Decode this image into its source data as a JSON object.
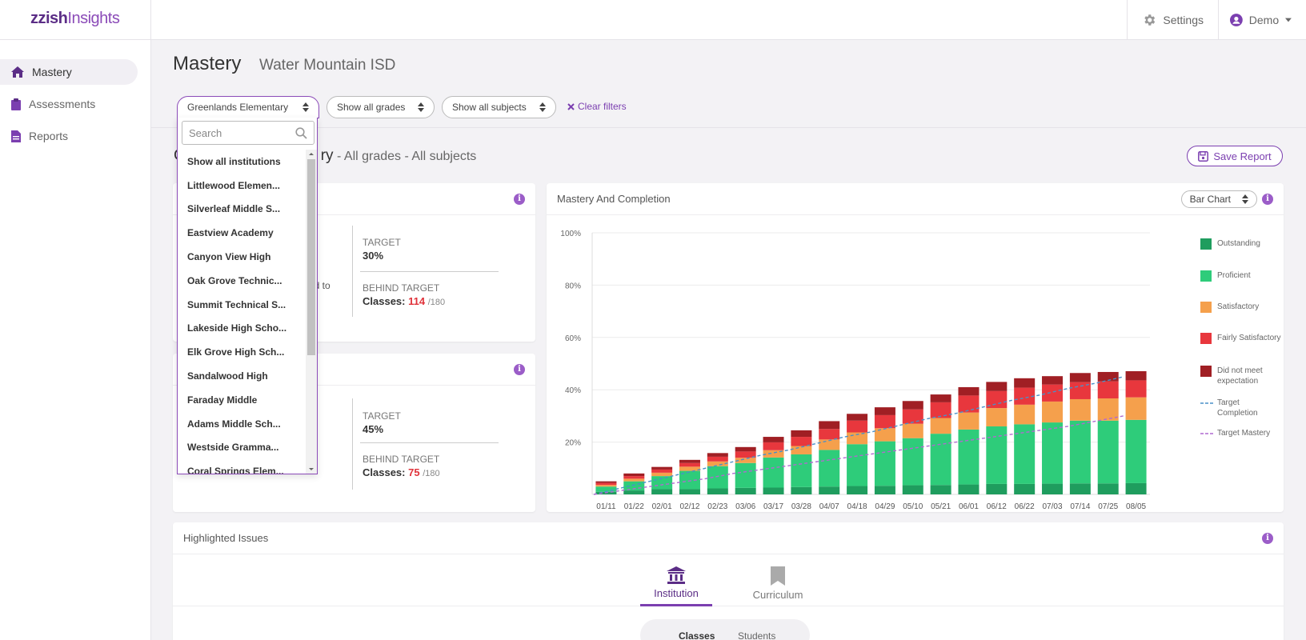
{
  "app": {
    "logo_part1": "zzish",
    "logo_part2": "Insights"
  },
  "topbar": {
    "settings_label": "Settings",
    "user_label": "Demo"
  },
  "sidebar": {
    "items": [
      {
        "label": "Mastery"
      },
      {
        "label": "Assessments"
      },
      {
        "label": "Reports"
      }
    ]
  },
  "header": {
    "title": "Mastery",
    "subtitle": "Water Mountain ISD"
  },
  "filters": {
    "institution": "Greenlands Elementary",
    "grades": "Show all grades",
    "subjects": "Show all subjects",
    "clear": "Clear filters"
  },
  "report": {
    "title_visible": "C",
    "title_partial": "ry",
    "sub": " - All grades - All subjects",
    "save_label": "Save Report"
  },
  "card1": {
    "partial_text": "ed to",
    "target_label": "TARGET",
    "target_value": "30%",
    "behind_label": "BEHIND TARGET",
    "classes_label": "Classes:",
    "behind_count": "114",
    "behind_total": "/180"
  },
  "card2": {
    "target_label": "TARGET",
    "target_value": "45%",
    "behind_label": "BEHIND TARGET",
    "classes_label": "Classes:",
    "behind_count": "75",
    "behind_total": "/180"
  },
  "chart_card": {
    "title": "Mastery And Completion",
    "chart_type_label": "Bar Chart"
  },
  "dropdown": {
    "search_placeholder": "Search",
    "items": [
      "Show all institutions",
      "Littlewood Elemen...",
      "Silverleaf Middle S...",
      "Eastview Academy",
      "Canyon View High",
      "Oak Grove Technic...",
      "Summit Technical S...",
      "Lakeside High Scho...",
      "Elk Grove High Sch...",
      "Sandalwood High",
      "Faraday Middle",
      "Adams Middle Sch...",
      "Westside Gramma...",
      "Coral Springs Elem..."
    ]
  },
  "issues": {
    "title": "Highlighted Issues",
    "tab_institution": "Institution",
    "tab_curriculum": "Curriculum",
    "seg_classes": "Classes",
    "seg_students": "Students"
  },
  "colors": {
    "accent": "#7b3fb0",
    "outstanding": "#1f9d5e",
    "proficient": "#2ecc7a",
    "satisfactory": "#f5a04c",
    "fairly": "#e8373d",
    "notmeet": "#a01f24",
    "target_completion": "#4a90c8",
    "target_mastery": "#b06ad0"
  },
  "chart_data": {
    "type": "bar",
    "stacked": true,
    "categories": [
      "01/11",
      "01/22",
      "02/01",
      "02/12",
      "02/23",
      "03/06",
      "03/17",
      "03/28",
      "04/07",
      "04/18",
      "04/29",
      "05/10",
      "05/21",
      "06/01",
      "06/12",
      "06/22",
      "07/03",
      "07/14",
      "07/25",
      "08/05"
    ],
    "y_ticks": [
      "20%",
      "40%",
      "60%",
      "80%",
      "100%"
    ],
    "ylim": [
      0,
      100
    ],
    "legend_position": "right",
    "series": [
      {
        "name": "Outstanding",
        "color": "#1f9d5e",
        "values": [
          1,
          1.5,
          2,
          2,
          2.3,
          2.5,
          2.6,
          2.8,
          3,
          3.2,
          3.3,
          3.5,
          3.6,
          3.8,
          4,
          4,
          4.1,
          4.2,
          4.2,
          4.3
        ]
      },
      {
        "name": "Proficient",
        "color": "#2ecc7a",
        "values": [
          2,
          3.5,
          5,
          7,
          8.5,
          9.5,
          11.5,
          12.5,
          14,
          16,
          17,
          18,
          19.6,
          21,
          22,
          22.8,
          23.4,
          24,
          24,
          24.2
        ]
      },
      {
        "name": "Satisfactory",
        "color": "#f5a04c",
        "values": [
          0.6,
          1,
          1.3,
          1.6,
          1.8,
          2,
          2.8,
          3.2,
          4,
          4.5,
          5,
          5.5,
          6,
          6.5,
          7,
          7.5,
          8,
          8.2,
          8.5,
          8.6
        ]
      },
      {
        "name": "Fairly Satisfactory",
        "color": "#e8373d",
        "values": [
          0.8,
          1,
          1.2,
          1.4,
          1.8,
          2.4,
          3,
          3.5,
          4,
          4.5,
          5,
          5.5,
          6,
          6.5,
          6.5,
          6.5,
          6.5,
          6.5,
          6.5,
          6.5
        ]
      },
      {
        "name": "Did not meet expectation",
        "color": "#a01f24",
        "values": [
          0.6,
          1,
          1,
          1.2,
          1.4,
          1.7,
          2.1,
          2.5,
          3,
          2.6,
          3,
          3.2,
          3,
          3.2,
          3.5,
          3.6,
          3.2,
          3.5,
          3.6,
          3.5
        ]
      }
    ],
    "lines": [
      {
        "name": "Target Completion",
        "color": "#4a90c8",
        "dashed": true,
        "values": [
          0,
          2.5,
          5,
          7.5,
          10,
          12.5,
          15,
          17,
          19.5,
          22,
          24,
          26.5,
          29,
          31,
          33.5,
          36,
          38,
          40.5,
          42.5,
          45
        ]
      },
      {
        "name": "Target Mastery",
        "color": "#b06ad0",
        "dashed": true,
        "values": [
          0,
          1.5,
          3,
          4.5,
          6,
          8,
          9.5,
          11,
          12.5,
          14,
          15.5,
          17,
          18.5,
          20,
          21.5,
          23,
          24.5,
          26,
          28,
          30
        ]
      }
    ]
  }
}
